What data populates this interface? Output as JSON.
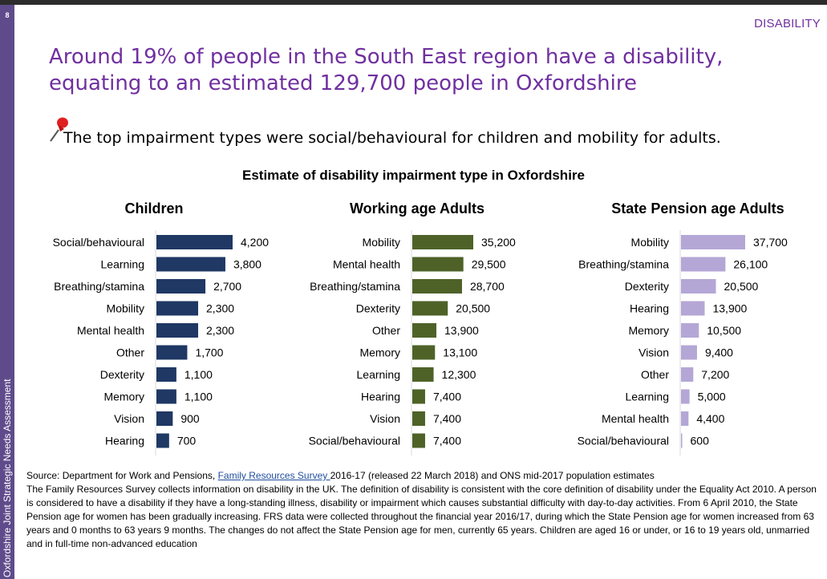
{
  "page": {
    "number": "8",
    "side_label": "Oxfordshire Joint Strategic Needs Assessment",
    "section_tag": "DISABILITY",
    "title": "Around 19% of people in the South East region have a disability, equating to an estimated 129,700 people in Oxfordshire",
    "bullet": "The top impairment types were social/behavioural for children and mobility for adults."
  },
  "source": {
    "prefix": "Source: Department for Work and Pensions, ",
    "link_text": "Family Resources Survey ",
    "suffix": "2016-17 (released 22 March 2018) and ONS mid-2017 population estimates",
    "body": "The Family Resources Survey collects information on disability in the UK.  The definition of disability is consistent with the core definition of disability under the Equality Act 2010.  A person is considered to have a disability if they have a long-standing illness, disability or impairment which causes substantial difficulty with day-to-day activities. From 6 April 2010, the State Pension age for women has been gradually increasing. FRS data were collected throughout the financial year 2016/17, during which the State Pension age for women increased from 63 years and 0 months to 63 years 9 months. The changes do not affect the State Pension age for men, currently 65 years.  Children are aged 16 or under, or 16 to 19 years old, unmarried and in full-time non-advanced education"
  },
  "colors": {
    "accent": "#7030a0",
    "sidebar": "#5f4b8b",
    "children": "#1f3864",
    "working": "#4e6228",
    "pension": "#b4a7d6"
  },
  "chart_data": [
    {
      "type": "bar",
      "orientation": "horizontal",
      "title": "Estimate of disability impairment type in Oxfordshire",
      "subtitle": "Children",
      "color": "#1f3864",
      "categories": [
        "Social/behavioural",
        "Learning",
        "Breathing/stamina",
        "Mobility",
        "Mental health",
        "Other",
        "Dexterity",
        "Memory",
        "Vision",
        "Hearing"
      ],
      "values": [
        4200,
        3800,
        2700,
        2300,
        2300,
        1700,
        1100,
        1100,
        900,
        700
      ],
      "labels": [
        "4,200",
        "3,800",
        "2,700",
        "2,300",
        "2,300",
        "1,700",
        "1,100",
        "1,100",
        "900",
        "700"
      ]
    },
    {
      "type": "bar",
      "orientation": "horizontal",
      "subtitle": "Working age Adults",
      "color": "#4e6228",
      "categories": [
        "Mobility",
        "Mental health",
        "Breathing/stamina",
        "Dexterity",
        "Other",
        "Memory",
        "Learning",
        "Hearing",
        "Vision",
        "Social/behavioural"
      ],
      "values": [
        35200,
        29500,
        28700,
        20500,
        13900,
        13100,
        12300,
        7400,
        7400,
        7400
      ],
      "labels": [
        "35,200",
        "29,500",
        "28,700",
        "20,500",
        "13,900",
        "13,100",
        "12,300",
        "7,400",
        "7,400",
        "7,400"
      ]
    },
    {
      "type": "bar",
      "orientation": "horizontal",
      "subtitle": "State Pension age Adults",
      "color": "#b4a7d6",
      "categories": [
        "Mobility",
        "Breathing/stamina",
        "Dexterity",
        "Hearing",
        "Memory",
        "Vision",
        "Other",
        "Learning",
        "Mental health",
        "Social/behavioural"
      ],
      "values": [
        37700,
        26100,
        20500,
        13900,
        10500,
        9400,
        7200,
        5000,
        4400,
        600
      ],
      "labels": [
        "37,700",
        "26,100",
        "20,500",
        "13,900",
        "10,500",
        "9,400",
        "7,200",
        "5,000",
        "4,400",
        "600"
      ]
    }
  ]
}
